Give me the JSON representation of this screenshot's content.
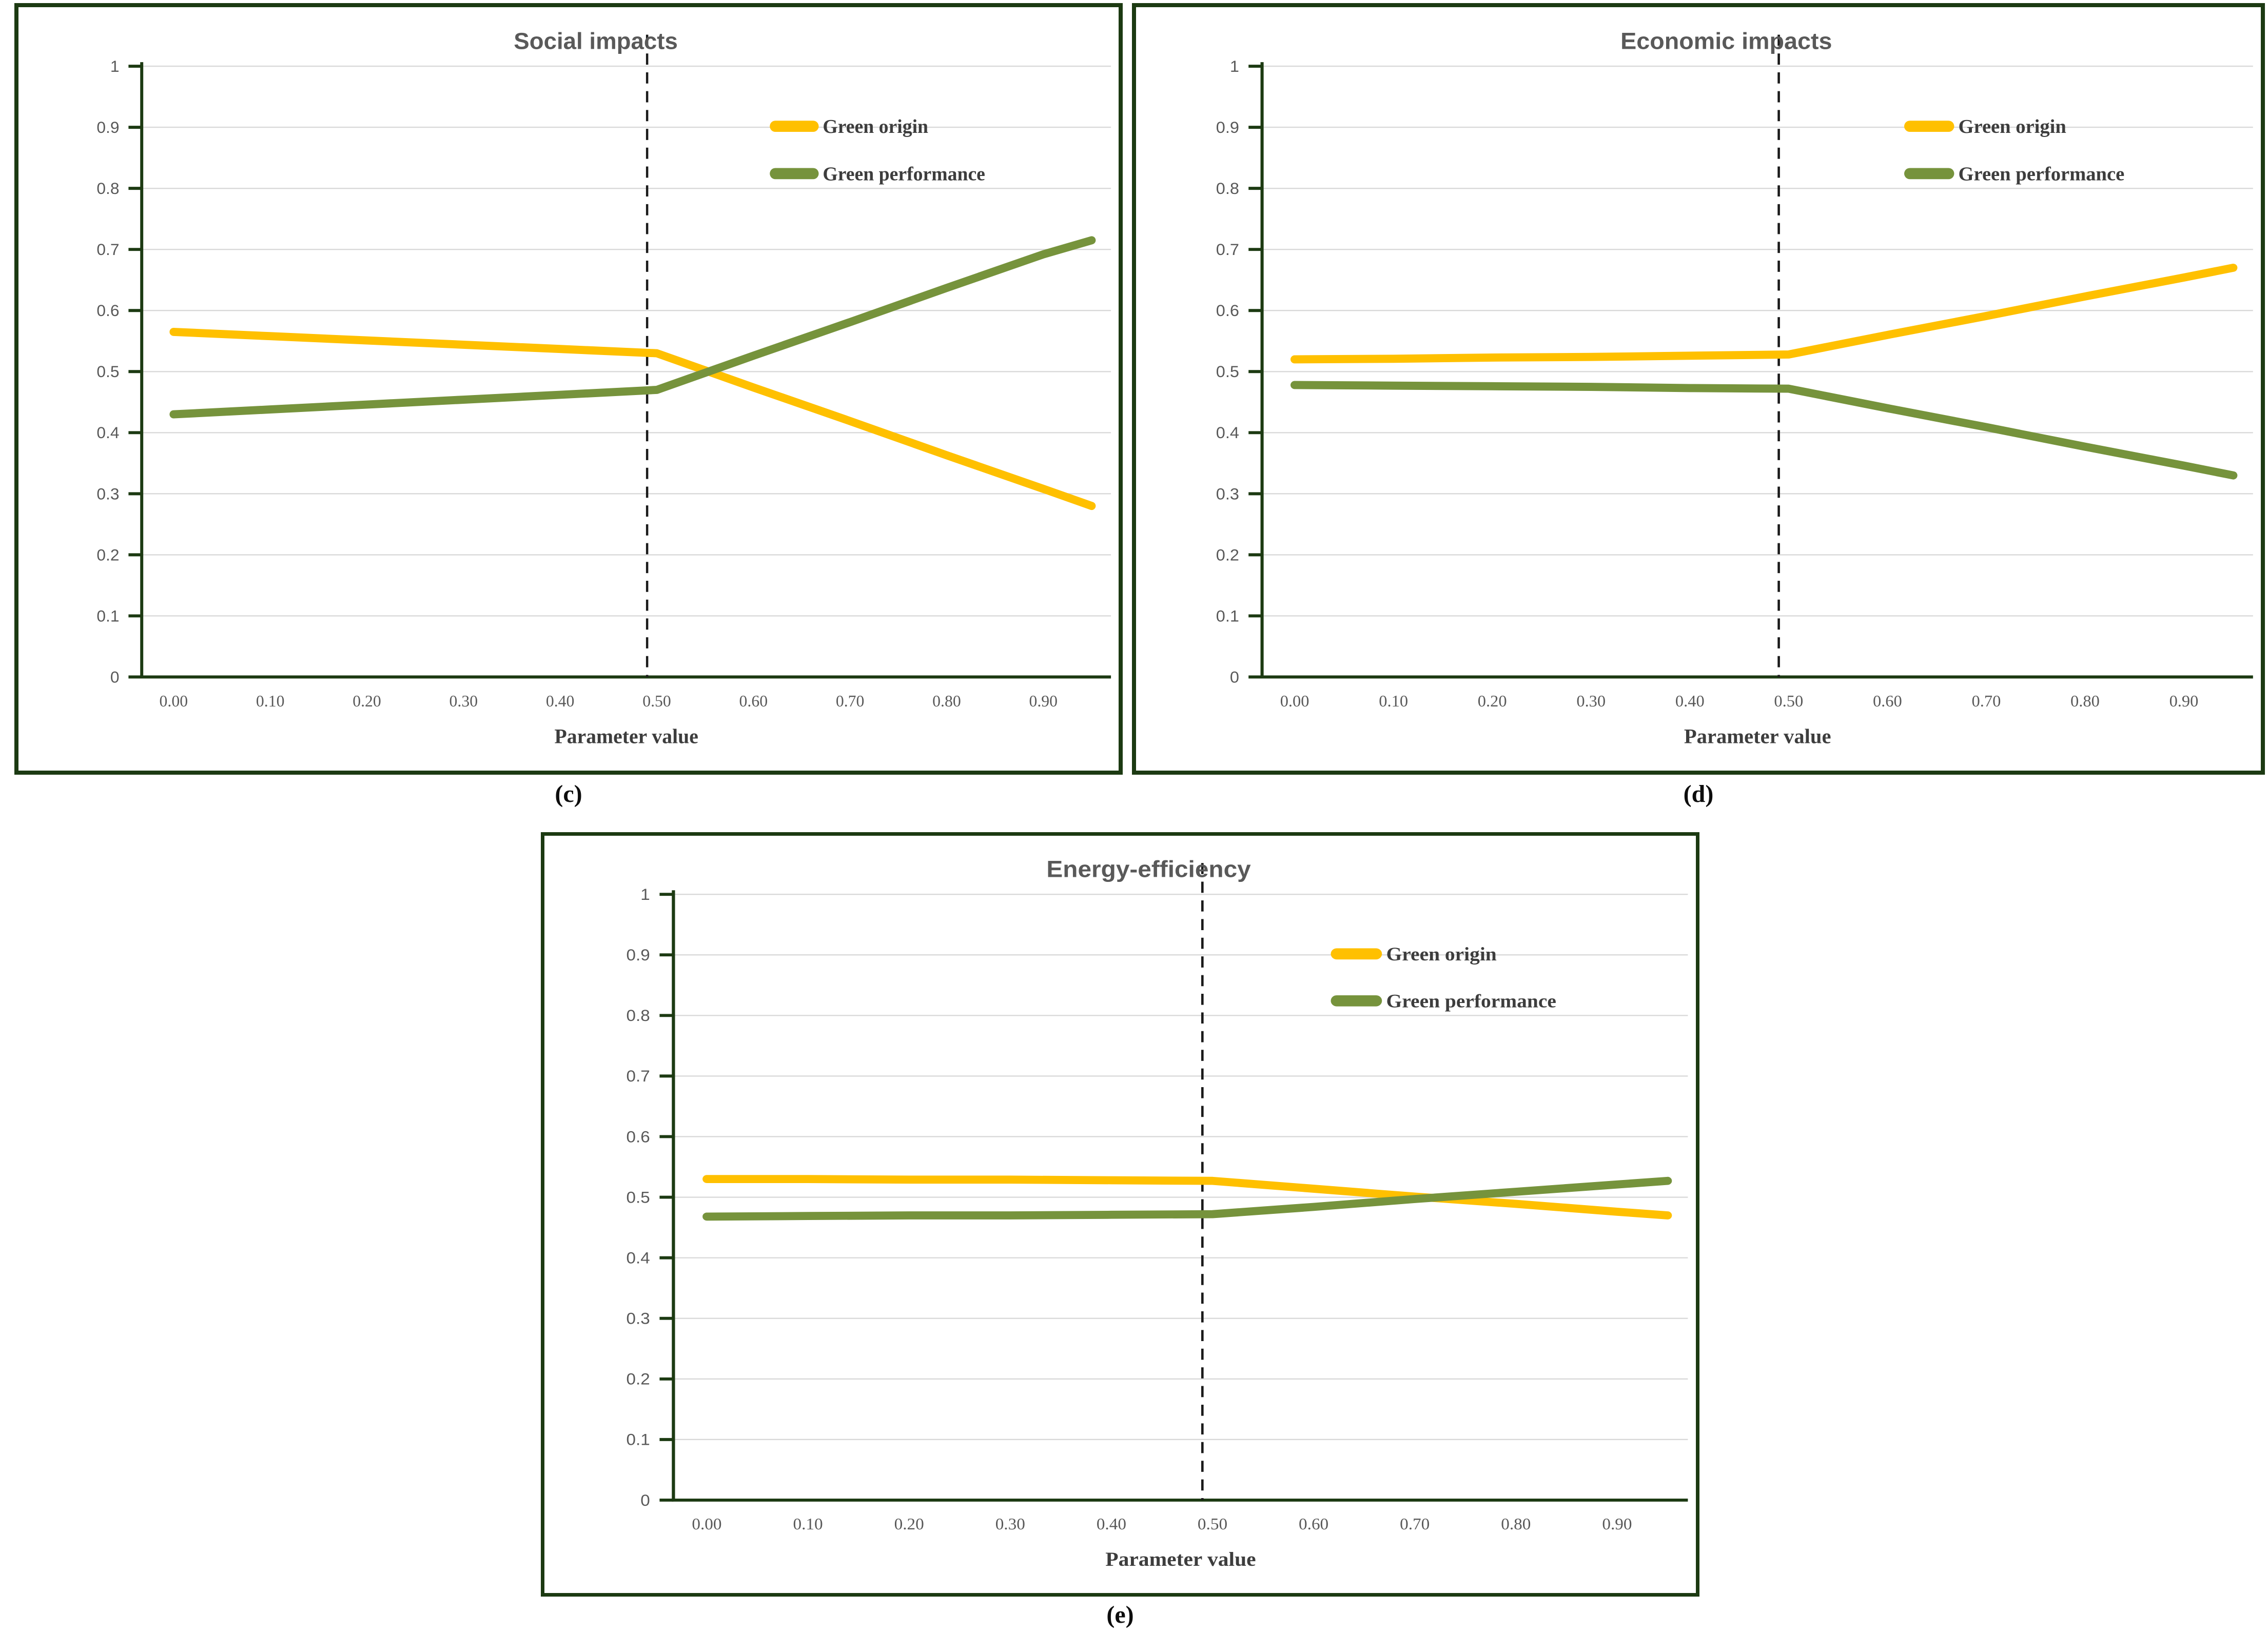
{
  "colors": {
    "green_origin": "#FFC000",
    "green_performance": "#76933C",
    "panel_border": "#1c3a12",
    "axis": "#1c3a12",
    "gridline": "#D9D9D9",
    "tick_text": "#595959",
    "title_text": "#595959",
    "legend_text": "#3d3d3d",
    "dashed_line": "#1a1a1a"
  },
  "chart_data": [
    {
      "type": "line",
      "title": "Social impacts",
      "caption": "(c)",
      "xlabel": "Parameter value",
      "ylabel": "",
      "xlim": [
        -0.033,
        0.97
      ],
      "ylim": [
        0,
        1
      ],
      "grid": true,
      "legend_position": "upper-right-inside",
      "dashed_vertical_line_x": 0.49,
      "x_ticks": [
        "0.00",
        "0.10",
        "0.20",
        "0.30",
        "0.40",
        "0.50",
        "0.60",
        "0.70",
        "0.80",
        "0.90"
      ],
      "y_ticks": [
        "0",
        "0.1",
        "0.2",
        "0.3",
        "0.4",
        "0.5",
        "0.6",
        "0.7",
        "0.8",
        "0.9",
        "1"
      ],
      "x": [
        0.0,
        0.1,
        0.2,
        0.3,
        0.4,
        0.5,
        0.6,
        0.7,
        0.8,
        0.9,
        0.95
      ],
      "series": [
        {
          "name": "Green origin",
          "color": "#FFC000",
          "values": [
            0.565,
            0.558,
            0.551,
            0.544,
            0.537,
            0.53,
            0.474,
            0.419,
            0.363,
            0.308,
            0.28
          ]
        },
        {
          "name": "Green performance",
          "color": "#76933C",
          "values": [
            0.43,
            0.438,
            0.446,
            0.454,
            0.462,
            0.47,
            0.526,
            0.581,
            0.637,
            0.692,
            0.715
          ]
        }
      ]
    },
    {
      "type": "line",
      "title": "Economic impacts",
      "caption": "(d)",
      "xlabel": "Parameter value",
      "ylabel": "",
      "xlim": [
        -0.033,
        0.97
      ],
      "ylim": [
        0,
        1
      ],
      "grid": true,
      "legend_position": "upper-right-inside",
      "dashed_vertical_line_x": 0.49,
      "x_ticks": [
        "0.00",
        "0.10",
        "0.20",
        "0.30",
        "0.40",
        "0.50",
        "0.60",
        "0.70",
        "0.80",
        "0.90"
      ],
      "y_ticks": [
        "0",
        "0.1",
        "0.2",
        "0.3",
        "0.4",
        "0.5",
        "0.6",
        "0.7",
        "0.8",
        "0.9",
        "1"
      ],
      "x": [
        0.0,
        0.1,
        0.2,
        0.3,
        0.4,
        0.5,
        0.6,
        0.7,
        0.8,
        0.9,
        0.95
      ],
      "series": [
        {
          "name": "Green origin",
          "color": "#FFC000",
          "values": [
            0.52,
            0.521,
            0.523,
            0.524,
            0.526,
            0.528,
            0.56,
            0.591,
            0.623,
            0.654,
            0.67
          ]
        },
        {
          "name": "Green performance",
          "color": "#76933C",
          "values": [
            0.478,
            0.477,
            0.476,
            0.475,
            0.473,
            0.472,
            0.44,
            0.409,
            0.377,
            0.346,
            0.33
          ]
        }
      ]
    },
    {
      "type": "line",
      "title": "Energy-efficiency",
      "caption": "(e)",
      "xlabel": "Parameter value",
      "ylabel": "",
      "xlim": [
        -0.033,
        0.97
      ],
      "ylim": [
        0,
        1
      ],
      "grid": true,
      "legend_position": "upper-right-inside",
      "dashed_vertical_line_x": 0.49,
      "x_ticks": [
        "0.00",
        "0.10",
        "0.20",
        "0.30",
        "0.40",
        "0.50",
        "0.60",
        "0.70",
        "0.80",
        "0.90"
      ],
      "y_ticks": [
        "0",
        "0.1",
        "0.2",
        "0.3",
        "0.4",
        "0.5",
        "0.6",
        "0.7",
        "0.8",
        "0.9",
        "1"
      ],
      "x": [
        0.0,
        0.1,
        0.2,
        0.3,
        0.4,
        0.5,
        0.6,
        0.7,
        0.8,
        0.9,
        0.95
      ],
      "series": [
        {
          "name": "Green origin",
          "color": "#FFC000",
          "values": [
            0.53,
            0.53,
            0.529,
            0.529,
            0.528,
            0.527,
            0.514,
            0.501,
            0.489,
            0.476,
            0.47
          ]
        },
        {
          "name": "Green performance",
          "color": "#76933C",
          "values": [
            0.468,
            0.469,
            0.47,
            0.47,
            0.471,
            0.472,
            0.484,
            0.497,
            0.509,
            0.521,
            0.527
          ]
        }
      ]
    }
  ]
}
